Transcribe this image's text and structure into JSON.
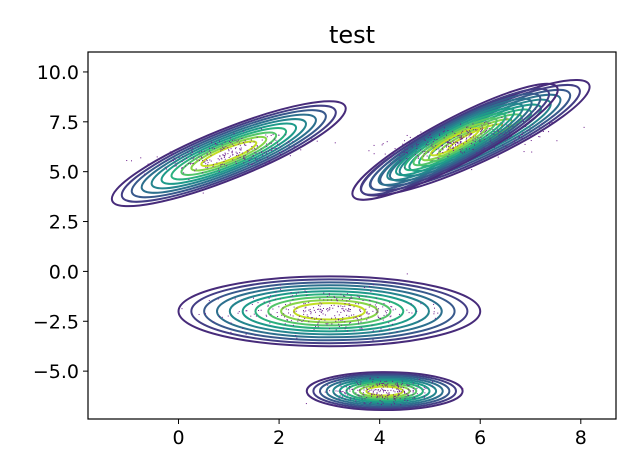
{
  "chart_data": {
    "type": "scatter",
    "title": "test",
    "xlabel": "",
    "ylabel": "",
    "xlim": [
      -1.8,
      8.7
    ],
    "ylim": [
      -7.4,
      11.0
    ],
    "grid": false,
    "legend": "none",
    "xticks": [
      0,
      2,
      4,
      6,
      8
    ],
    "xtick_labels": [
      "0",
      "2",
      "4",
      "6",
      "8"
    ],
    "yticks": [
      -5.0,
      -2.5,
      0.0,
      2.5,
      5.0,
      7.5,
      10.0
    ],
    "ytick_labels": [
      "−5.0",
      "−2.5",
      "0.0",
      "2.5",
      "5.0",
      "7.5",
      "10.0"
    ],
    "scatter_color": "#6a1b8a",
    "contour_colors": [
      "#472b7a",
      "#433e85",
      "#38598c",
      "#2d708e",
      "#25858e",
      "#1e9b8a",
      "#2ab07f",
      "#52c569",
      "#86d549",
      "#c2df23"
    ],
    "clusters": [
      {
        "center": [
          1.0,
          5.9
        ],
        "semi_axes": [
          2.5,
          1.25
        ],
        "angle_deg": 22,
        "points": 260
      },
      {
        "center": [
          5.9,
          6.7
        ],
        "semi_axes": [
          2.5,
          1.25
        ],
        "angle_deg": 25,
        "points": 260
      },
      {
        "center": [
          5.5,
          6.5
        ],
        "semi_axes": [
          2.3,
          1.15
        ],
        "angle_deg": 28,
        "points": 200
      },
      {
        "center": [
          3.0,
          -2.0
        ],
        "semi_axes": [
          3.0,
          1.75
        ],
        "angle_deg": 0,
        "points": 320
      },
      {
        "center": [
          4.1,
          -6.0
        ],
        "semi_axes": [
          1.55,
          0.95
        ],
        "angle_deg": 0,
        "points": 240
      }
    ]
  }
}
